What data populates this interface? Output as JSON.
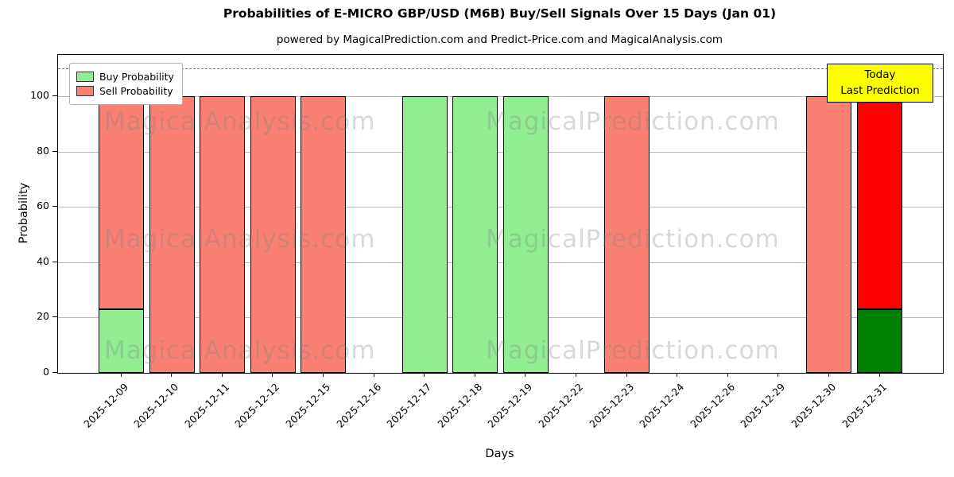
{
  "figure": {
    "title": "Probabilities of E-MICRO GBP/USD (M6B) Buy/Sell Signals Over 15 Days (Jan 01)",
    "subtitle": "powered by MagicalPrediction.com and Predict-Price.com and MagicalAnalysis.com"
  },
  "axes": {
    "xlabel": "Days",
    "ylabel": "Probability",
    "yticks": [
      0,
      20,
      40,
      60,
      80,
      100
    ],
    "ylim": [
      0,
      115
    ],
    "dashed_line_y": 110,
    "grid_color": "#b8b8b8"
  },
  "legend": {
    "position": "upper left"
  },
  "today_box": {
    "line1": "Today",
    "line2": "Last Prediction",
    "bg_color": "#ffff00"
  },
  "watermarks": {
    "left": "MagicalAnalysis.com",
    "right": "MagicalPrediction.com"
  },
  "chart_data": {
    "type": "bar",
    "stacked": true,
    "title": "Probabilities of E-MICRO GBP/USD (M6B) Buy/Sell Signals Over 15 Days (Jan 01)",
    "xlabel": "Days",
    "ylabel": "Probability",
    "ylim": [
      0,
      115
    ],
    "grid": "horizontal",
    "legend_position": "upper left",
    "categories": [
      "2025-12-09",
      "2025-12-10",
      "2025-12-11",
      "2025-12-12",
      "2025-12-15",
      "2025-12-16",
      "2025-12-17",
      "2025-12-18",
      "2025-12-19",
      "2025-12-22",
      "2025-12-23",
      "2025-12-24",
      "2025-12-26",
      "2025-12-29",
      "2025-12-30",
      "2025-12-31"
    ],
    "series": [
      {
        "name": "Buy Probability",
        "color": "#90ee90",
        "values": [
          23,
          0,
          0,
          0,
          0,
          0,
          100,
          100,
          100,
          0,
          0,
          0,
          0,
          0,
          0,
          23
        ]
      },
      {
        "name": "Sell Probability",
        "color": "#fa8072",
        "values": [
          77,
          100,
          100,
          100,
          100,
          0,
          0,
          0,
          0,
          0,
          100,
          0,
          0,
          0,
          100,
          77
        ]
      }
    ],
    "today_index": 15,
    "today_colors": {
      "buy": "#008000",
      "sell": "#ff0000"
    }
  }
}
